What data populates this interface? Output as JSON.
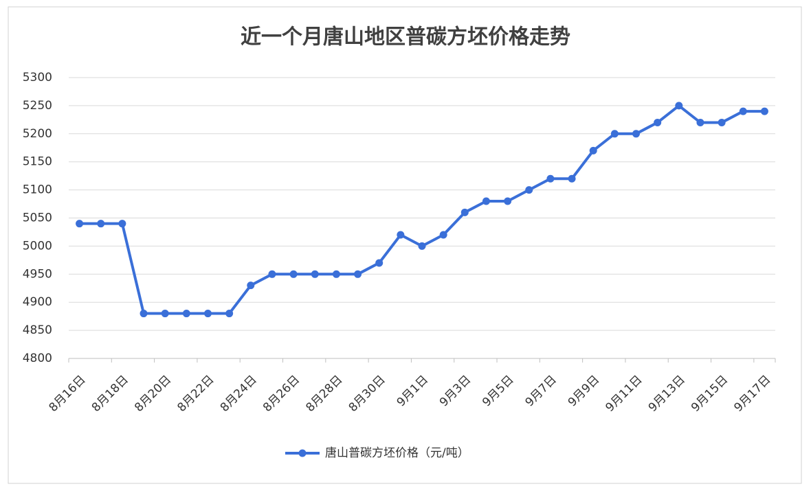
{
  "chart_data": {
    "type": "line",
    "title": "近一个月唐山地区普碳方坯价格走势",
    "categories": [
      "8月16日",
      null,
      "8月18日",
      null,
      "8月20日",
      null,
      "8月22日",
      null,
      "8月24日",
      null,
      "8月26日",
      null,
      "8月28日",
      null,
      "8月30日",
      null,
      "9月1日",
      null,
      "9月3日",
      null,
      "9月5日",
      null,
      "9月7日",
      null,
      "9月9日",
      null,
      "9月11日",
      null,
      "9月13日",
      null,
      "9月15日",
      null,
      "9月17日"
    ],
    "series": [
      {
        "name": "唐山普碳方坯价格（元/吨）",
        "color": "#3a6fd8",
        "values": [
          5040,
          5040,
          5040,
          4880,
          4880,
          4880,
          4880,
          4880,
          4930,
          4950,
          4950,
          4950,
          4950,
          4950,
          4970,
          5020,
          5000,
          5020,
          5060,
          5080,
          5080,
          5100,
          5120,
          5120,
          5170,
          5200,
          5200,
          5220,
          5250,
          5220,
          5220,
          5240,
          5240
        ]
      }
    ],
    "ylim": [
      4800,
      5300
    ],
    "yticks": [
      4800,
      4850,
      4900,
      4950,
      5000,
      5050,
      5100,
      5150,
      5200,
      5250,
      5300
    ],
    "grid": true,
    "legend": "bottom"
  }
}
